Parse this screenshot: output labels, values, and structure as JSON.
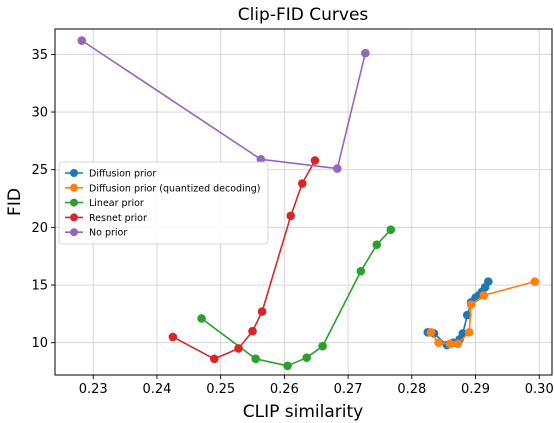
{
  "chart_data": {
    "type": "line",
    "title": "Clip-FID Curves",
    "xlabel": "CLIP similarity",
    "ylabel": "FID",
    "xlim": [
      0.224,
      0.302
    ],
    "ylim": [
      7.2,
      37.2
    ],
    "xticks": [
      0.23,
      0.24,
      0.25,
      0.26,
      0.27,
      0.28,
      0.29,
      0.3
    ],
    "xtick_labels": [
      "0.23",
      "0.24",
      "0.25",
      "0.26",
      "0.27",
      "0.28",
      "0.29",
      "0.30"
    ],
    "yticks": [
      10,
      15,
      20,
      25,
      30,
      35
    ],
    "ytick_labels": [
      "10",
      "15",
      "20",
      "25",
      "30",
      "35"
    ],
    "grid": true,
    "legend_position": "center-left",
    "series": [
      {
        "name": "Diffusion prior",
        "color": "#1f77b4",
        "points": [
          [
            0.2825,
            10.9
          ],
          [
            0.2835,
            10.8
          ],
          [
            0.2855,
            9.8
          ],
          [
            0.2865,
            10.0
          ],
          [
            0.2875,
            10.3
          ],
          [
            0.288,
            10.8
          ],
          [
            0.2887,
            12.4
          ],
          [
            0.2893,
            13.5
          ],
          [
            0.29,
            13.9
          ],
          [
            0.2905,
            14.1
          ],
          [
            0.291,
            14.4
          ],
          [
            0.2915,
            14.8
          ],
          [
            0.292,
            15.3
          ]
        ]
      },
      {
        "name": "Diffusion prior (quantized decoding)",
        "color": "#ff7f0e",
        "points": [
          [
            0.283,
            10.9
          ],
          [
            0.2842,
            10.0
          ],
          [
            0.286,
            9.9
          ],
          [
            0.2872,
            9.9
          ],
          [
            0.289,
            10.9
          ],
          [
            0.2893,
            13.3
          ],
          [
            0.2913,
            14.1
          ],
          [
            0.2993,
            15.3
          ]
        ]
      },
      {
        "name": "Linear prior",
        "color": "#2ca02c",
        "points": [
          [
            0.247,
            12.1
          ],
          [
            0.2555,
            8.6
          ],
          [
            0.2605,
            8.0
          ],
          [
            0.2635,
            8.7
          ],
          [
            0.266,
            9.7
          ],
          [
            0.272,
            16.2
          ],
          [
            0.2745,
            18.5
          ],
          [
            0.2767,
            19.8
          ]
        ]
      },
      {
        "name": "Resnet prior",
        "color": "#d62728",
        "points": [
          [
            0.2425,
            10.5
          ],
          [
            0.249,
            8.6
          ],
          [
            0.2528,
            9.5
          ],
          [
            0.255,
            11.0
          ],
          [
            0.2565,
            12.7
          ],
          [
            0.261,
            21.0
          ],
          [
            0.2628,
            23.8
          ],
          [
            0.2648,
            25.8
          ]
        ]
      },
      {
        "name": "No prior",
        "color": "#9467bd",
        "points": [
          [
            0.2282,
            36.2
          ],
          [
            0.2563,
            25.9
          ],
          [
            0.2683,
            25.1
          ],
          [
            0.2727,
            35.1
          ]
        ]
      }
    ]
  }
}
